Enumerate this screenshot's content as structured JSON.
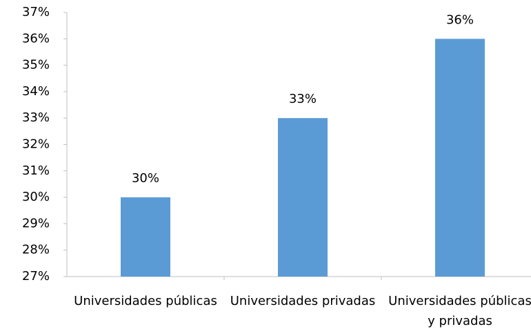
{
  "chart_data": {
    "type": "bar",
    "categories": [
      "Universidades públicas",
      "Universidades privadas",
      "Universidades públicas y privadas"
    ],
    "values": [
      30,
      33,
      36
    ],
    "value_labels": [
      "30%",
      "33%",
      "36%"
    ],
    "color": "#5b9bd5",
    "ylim": [
      27,
      37
    ],
    "yticks": [
      {
        "value": 27,
        "label": "27%"
      },
      {
        "value": 28,
        "label": "28%"
      },
      {
        "value": 29,
        "label": "29%"
      },
      {
        "value": 30,
        "label": "30%"
      },
      {
        "value": 31,
        "label": "31%"
      },
      {
        "value": 32,
        "label": "32%"
      },
      {
        "value": 33,
        "label": "33%"
      },
      {
        "value": 34,
        "label": "34%"
      },
      {
        "value": 35,
        "label": "35%"
      },
      {
        "value": 36,
        "label": "36%"
      },
      {
        "value": 37,
        "label": "37%"
      }
    ],
    "grid": false
  }
}
